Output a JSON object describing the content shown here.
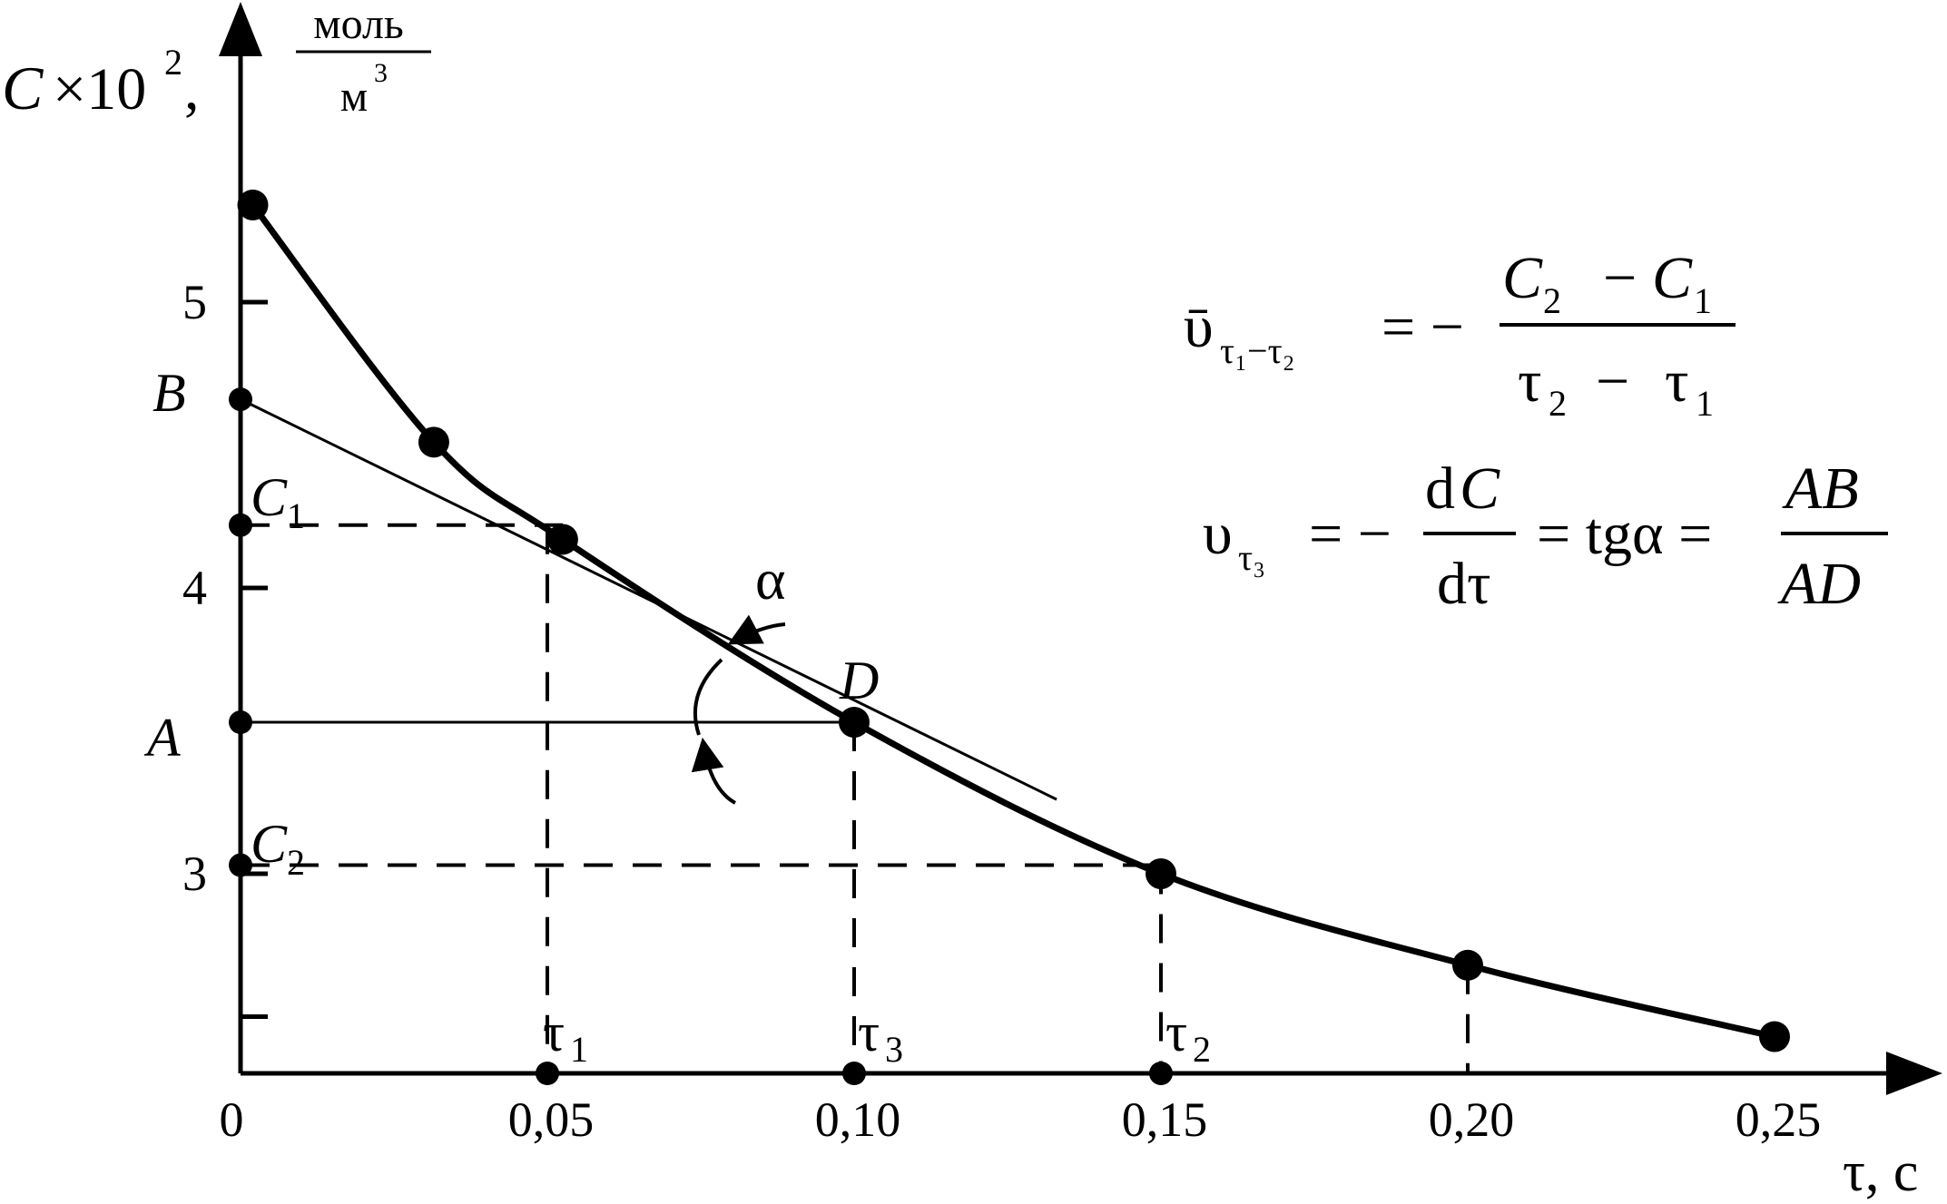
{
  "chart_data": {
    "type": "line",
    "y_axis": {
      "symbol": "C",
      "multiplier": "×10",
      "exponent": "2",
      "separator": ",",
      "unit_numerator": "моль",
      "unit_denominator": "м",
      "unit_denominator_exponent": "3",
      "ticks": [
        2.5,
        3,
        4,
        5
      ],
      "tick_labels": [
        "3",
        "4",
        "5"
      ],
      "range": [
        2.2,
        5.7
      ]
    },
    "x_axis": {
      "label": "τ, с",
      "ticks": [
        0,
        0.05,
        0.1,
        0.15,
        0.2,
        0.25
      ],
      "tick_labels": [
        "0",
        "0,05",
        "0,10",
        "0,15",
        "0,20",
        "0,25"
      ],
      "range": [
        0,
        0.27
      ]
    },
    "series": [
      {
        "values": [
          {
            "x": 0.002,
            "y": 5.34
          },
          {
            "x": 0.0315,
            "y": 4.51
          },
          {
            "x": 0.0525,
            "y": 4.17
          },
          {
            "x": 0.1,
            "y": 3.53
          },
          {
            "x": 0.15,
            "y": 3.0
          },
          {
            "x": 0.2,
            "y": 2.68
          },
          {
            "x": 0.25,
            "y": 2.43
          }
        ]
      }
    ],
    "tangent": {
      "from": {
        "x": 0,
        "y": 4.66
      },
      "to": {
        "x": 0.133,
        "y": 3.26
      }
    },
    "guide_levels": {
      "C1": {
        "y": 4.22,
        "x_end": 0.05
      },
      "A": {
        "y": 3.53,
        "x_end": 0.1
      },
      "C2": {
        "y": 3.03,
        "x_end": 0.15
      }
    },
    "marked_times": {
      "tau1": 0.05,
      "tau3": 0.1,
      "tau2": 0.15,
      "dash_to": 0.2
    },
    "point_labels": {
      "B": "B",
      "C1": "C",
      "C1_sub": "1",
      "A": "A",
      "C2": "C",
      "C2_sub": "2",
      "D": "D",
      "alpha": "α",
      "tau1": "τ",
      "tau1_sub": "1",
      "tau3": "τ",
      "tau3_sub": "3",
      "tau2": "τ",
      "tau2_sub": "2"
    },
    "formulas": {
      "avg": {
        "lhs": "ῡ",
        "lhs_sub": "τ₁−τ₂",
        "eq": "= −",
        "num_c2": "C",
        "num_c2_sub": "2",
        "num_minus": "−",
        "num_c1": "C",
        "num_c1_sub": "1",
        "den_t2": "τ",
        "den_t2_sub": "2",
        "den_minus": "−",
        "den_t1": "τ",
        "den_t1_sub": "1"
      },
      "inst": {
        "lhs": "υ",
        "lhs_sub": "τ₃",
        "eq": "= −",
        "num": "d",
        "num_c": "C",
        "den": "dτ",
        "eq2": "= tgα =",
        "num2": "AB",
        "den2": "AD"
      }
    }
  }
}
